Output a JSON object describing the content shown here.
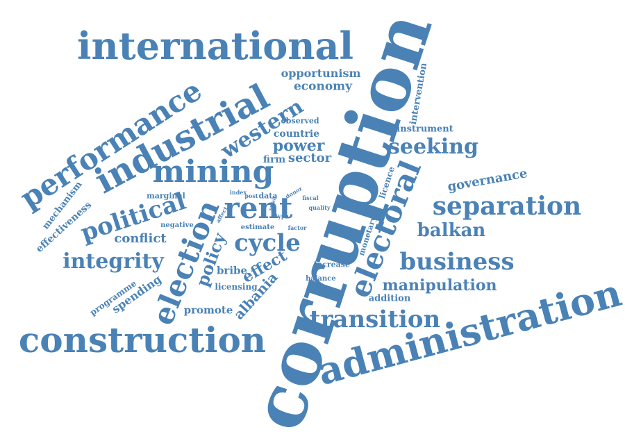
{
  "accent_color": "#4a82b6",
  "words": {
    "corruption": "corruption",
    "administration": "administration",
    "international": "international",
    "industrial": "industrial",
    "performance": "performance",
    "construction": "construction",
    "mining": "mining",
    "rent": "rent",
    "electoral": "electoral",
    "election": "election",
    "separation": "separation",
    "business": "business",
    "cycle": "cycle",
    "transition": "transition",
    "political": "political",
    "integrity": "integrity",
    "seeking": "seeking",
    "western": "western",
    "balkan": "balkan",
    "manipulation": "manipulation",
    "policy": "policy",
    "power": "power",
    "governance": "governance",
    "effect": "effect",
    "albania": "albania",
    "conflict": "conflict",
    "economy": "economy",
    "opportunism": "opportunism",
    "sector": "sector",
    "spending": "spending",
    "intervention": "intervention",
    "firm": "firm",
    "countrie": "countrie",
    "promote": "promote",
    "bribe": "bribe",
    "effectiveness": "effectiveness",
    "mechanism": "mechanism",
    "programme": "programme",
    "instrument": "instrument",
    "licence": "licence",
    "monetary": "monetary",
    "observed": "observed",
    "licensing": "licensing",
    "addition": "addition",
    "increase": "increase",
    "balance": "balance",
    "estimate": "estimate",
    "negative": "negative",
    "marginal": "marginal",
    "data": "data",
    "post": "post",
    "index": "index",
    "donor": "donor",
    "fiscal": "fiscal",
    "quality": "quality",
    "type": "type",
    "factor": "factor",
    "affect": "affect",
    "small": "small"
  }
}
